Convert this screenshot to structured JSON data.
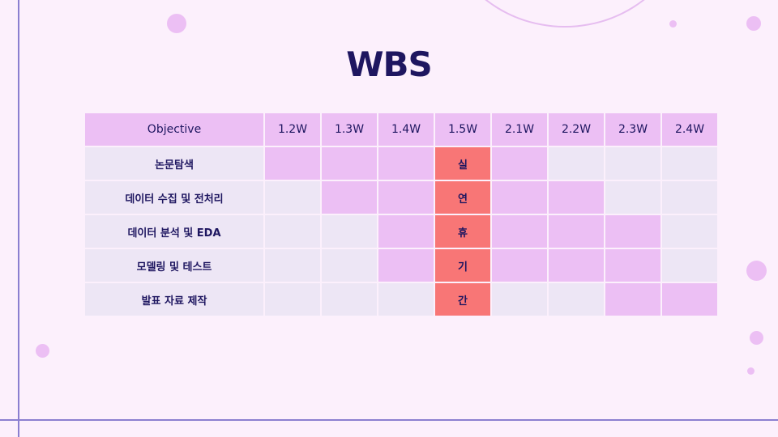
{
  "title": "WBS",
  "colors": {
    "active": "#ecbff4",
    "inactive": "#ede6f5",
    "break": "#f87676",
    "text": "#1e1660"
  },
  "table": {
    "header": {
      "objective": "Objective",
      "weeks": [
        "1.2W",
        "1.3W",
        "1.4W",
        "1.5W",
        "2.1W",
        "2.2W",
        "2.3W",
        "2.4W"
      ]
    },
    "rows": [
      {
        "task": "논문탐색",
        "active": [
          true,
          true,
          true,
          false,
          true,
          false,
          false,
          false
        ]
      },
      {
        "task": "데이터 수집 및 전처리",
        "active": [
          false,
          true,
          true,
          false,
          true,
          true,
          false,
          false
        ]
      },
      {
        "task": "데이터 분석 및 EDA",
        "active": [
          false,
          false,
          true,
          false,
          true,
          true,
          true,
          false
        ]
      },
      {
        "task": "모델링 및 테스트",
        "active": [
          false,
          false,
          true,
          false,
          true,
          true,
          true,
          false
        ]
      },
      {
        "task": "발표 자료 제작",
        "active": [
          false,
          false,
          false,
          false,
          false,
          false,
          true,
          true
        ]
      }
    ],
    "break_week_index": 3,
    "break_labels": [
      "실",
      "연",
      "휴",
      "기",
      "간"
    ]
  }
}
